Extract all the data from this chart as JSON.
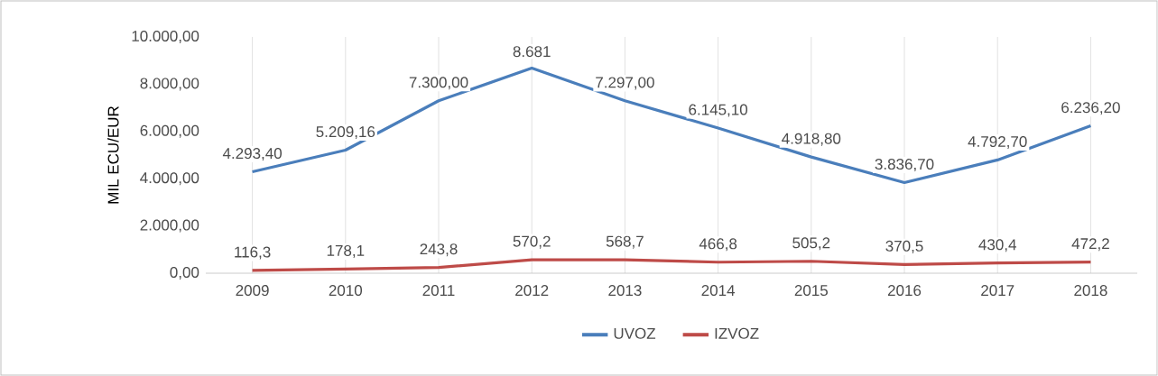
{
  "chart_data": {
    "type": "line",
    "ylabel": "MIL ECU/EUR",
    "categories": [
      "2009",
      "2010",
      "2011",
      "2012",
      "2013",
      "2014",
      "2015",
      "2016",
      "2017",
      "2018"
    ],
    "series": [
      {
        "name": "UVOZ",
        "color": "#4a7ebb",
        "values": [
          4293.4,
          5209.16,
          7300,
          8681,
          7297,
          6145.1,
          4918.8,
          3836.7,
          4792.7,
          6236.2
        ],
        "value_labels": [
          "4.293,40",
          "5.209,16",
          "7.300,00",
          "8.681",
          "7.297,00",
          "6.145,10",
          "4.918,80",
          "3.836,70",
          "4.792,70",
          "6.236,20"
        ]
      },
      {
        "name": "IZVOZ",
        "color": "#be4b48",
        "values": [
          116.3,
          178.1,
          243.8,
          570.2,
          568.7,
          466.8,
          505.2,
          370.5,
          430.4,
          472.2
        ],
        "value_labels": [
          "116,3",
          "178,1",
          "243,8",
          "570,2",
          "568,7",
          "466,8",
          "505,2",
          "370,5",
          "430,4",
          "472,2"
        ]
      }
    ],
    "ylim": [
      0,
      10000
    ],
    "yticks": [
      {
        "value": 0,
        "label": "0,00"
      },
      {
        "value": 2000,
        "label": "2.000,00"
      },
      {
        "value": 4000,
        "label": "4.000,00"
      },
      {
        "value": 6000,
        "label": "6.000,00"
      },
      {
        "value": 8000,
        "label": "8.000,00"
      },
      {
        "value": 10000,
        "label": "10.000,00"
      }
    ],
    "grid": "x",
    "legend": "bottom",
    "marker": "none",
    "line_style": "solid"
  }
}
